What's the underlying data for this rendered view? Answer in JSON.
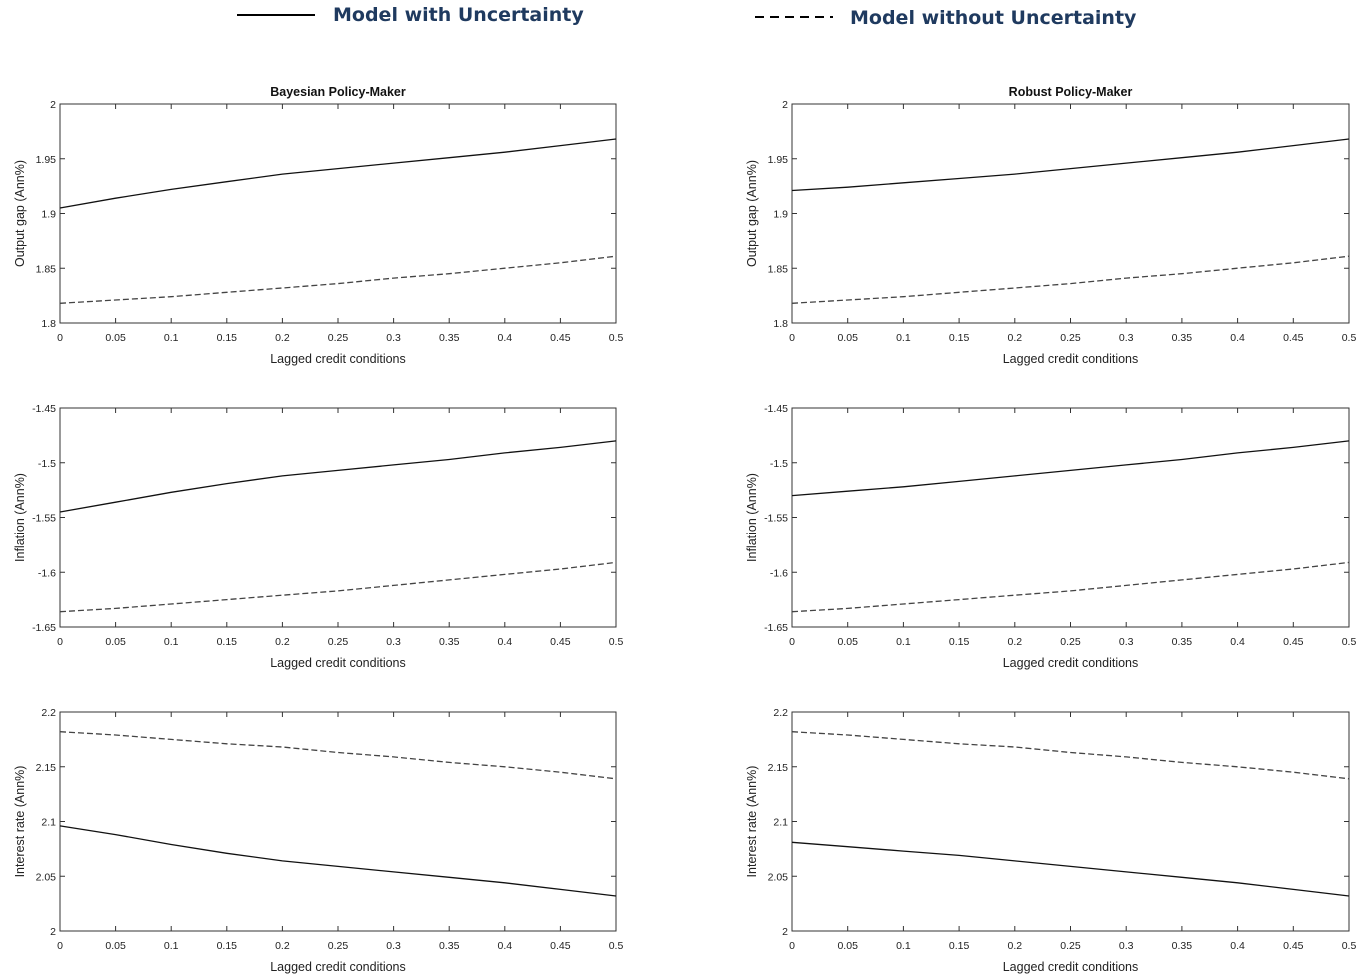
{
  "legend": {
    "items": [
      {
        "label": "Model with Uncertainty",
        "style": "solid"
      },
      {
        "label": "Model without Uncertainty",
        "style": "dashed"
      }
    ],
    "color": "#1f3a5f"
  },
  "chart_data": [
    {
      "type": "line",
      "title": "Bayesian Policy-Maker",
      "xlabel": "Lagged credit conditions",
      "ylabel": "Output gap (Ann%)",
      "xlim": [
        0,
        0.5
      ],
      "ylim": [
        1.8,
        2.0
      ],
      "xticks": [
        "0",
        "0.05",
        "0.1",
        "0.15",
        "0.2",
        "0.25",
        "0.3",
        "0.35",
        "0.4",
        "0.45",
        "0.5"
      ],
      "yticks": [
        "1.8",
        "1.85",
        "1.9",
        "1.95",
        "2"
      ],
      "x": [
        0,
        0.05,
        0.1,
        0.15,
        0.2,
        0.25,
        0.3,
        0.35,
        0.4,
        0.45,
        0.5
      ],
      "series": [
        {
          "style": "solid",
          "values": [
            1.905,
            1.914,
            1.922,
            1.929,
            1.936,
            1.941,
            1.946,
            1.951,
            1.956,
            1.962,
            1.968
          ]
        },
        {
          "style": "dashed",
          "values": [
            1.818,
            1.821,
            1.824,
            1.828,
            1.832,
            1.836,
            1.841,
            1.845,
            1.85,
            1.855,
            1.861
          ]
        }
      ],
      "grid": false
    },
    {
      "type": "line",
      "title": "Robust Policy-Maker",
      "xlabel": "Lagged credit conditions",
      "ylabel": "Output gap (Ann%)",
      "xlim": [
        0,
        0.5
      ],
      "ylim": [
        1.8,
        2.0
      ],
      "xticks": [
        "0",
        "0.05",
        "0.1",
        "0.15",
        "0.2",
        "0.25",
        "0.3",
        "0.35",
        "0.4",
        "0.45",
        "0.5"
      ],
      "yticks": [
        "1.8",
        "1.85",
        "1.9",
        "1.95",
        "2"
      ],
      "x": [
        0,
        0.05,
        0.1,
        0.15,
        0.2,
        0.25,
        0.3,
        0.35,
        0.4,
        0.45,
        0.5
      ],
      "series": [
        {
          "style": "solid",
          "values": [
            1.921,
            1.924,
            1.928,
            1.932,
            1.936,
            1.941,
            1.946,
            1.951,
            1.956,
            1.962,
            1.968
          ]
        },
        {
          "style": "dashed",
          "values": [
            1.818,
            1.821,
            1.824,
            1.828,
            1.832,
            1.836,
            1.841,
            1.845,
            1.85,
            1.855,
            1.861
          ]
        }
      ],
      "grid": false
    },
    {
      "type": "line",
      "title": "",
      "xlabel": "Lagged credit conditions",
      "ylabel": "Inflation (Ann%)",
      "xlim": [
        0,
        0.5
      ],
      "ylim": [
        -1.65,
        -1.45
      ],
      "xticks": [
        "0",
        "0.05",
        "0.1",
        "0.15",
        "0.2",
        "0.25",
        "0.3",
        "0.35",
        "0.4",
        "0.45",
        "0.5"
      ],
      "yticks": [
        "-1.65",
        "-1.6",
        "-1.55",
        "-1.5",
        "-1.45"
      ],
      "x": [
        0,
        0.05,
        0.1,
        0.15,
        0.2,
        0.25,
        0.3,
        0.35,
        0.4,
        0.45,
        0.5
      ],
      "series": [
        {
          "style": "solid",
          "values": [
            -1.545,
            -1.536,
            -1.527,
            -1.519,
            -1.512,
            -1.507,
            -1.502,
            -1.497,
            -1.491,
            -1.486,
            -1.48
          ]
        },
        {
          "style": "dashed",
          "values": [
            -1.636,
            -1.633,
            -1.629,
            -1.625,
            -1.621,
            -1.617,
            -1.612,
            -1.607,
            -1.602,
            -1.597,
            -1.591
          ]
        }
      ],
      "grid": false
    },
    {
      "type": "line",
      "title": "",
      "xlabel": "Lagged credit conditions",
      "ylabel": "Inflation (Ann%)",
      "xlim": [
        0,
        0.5
      ],
      "ylim": [
        -1.65,
        -1.45
      ],
      "xticks": [
        "0",
        "0.05",
        "0.1",
        "0.15",
        "0.2",
        "0.25",
        "0.3",
        "0.35",
        "0.4",
        "0.45",
        "0.5"
      ],
      "yticks": [
        "-1.65",
        "-1.6",
        "-1.55",
        "-1.5",
        "-1.45"
      ],
      "x": [
        0,
        0.05,
        0.1,
        0.15,
        0.2,
        0.25,
        0.3,
        0.35,
        0.4,
        0.45,
        0.5
      ],
      "series": [
        {
          "style": "solid",
          "values": [
            -1.53,
            -1.526,
            -1.522,
            -1.517,
            -1.512,
            -1.507,
            -1.502,
            -1.497,
            -1.491,
            -1.486,
            -1.48
          ]
        },
        {
          "style": "dashed",
          "values": [
            -1.636,
            -1.633,
            -1.629,
            -1.625,
            -1.621,
            -1.617,
            -1.612,
            -1.607,
            -1.602,
            -1.597,
            -1.591
          ]
        }
      ],
      "grid": false
    },
    {
      "type": "line",
      "title": "",
      "xlabel": "Lagged credit conditions",
      "ylabel": "Interest rate (Ann%)",
      "xlim": [
        0,
        0.5
      ],
      "ylim": [
        2.0,
        2.2
      ],
      "xticks": [
        "0",
        "0.05",
        "0.1",
        "0.15",
        "0.2",
        "0.25",
        "0.3",
        "0.35",
        "0.4",
        "0.45",
        "0.5"
      ],
      "yticks": [
        "2",
        "2.05",
        "2.1",
        "2.15",
        "2.2"
      ],
      "x": [
        0,
        0.05,
        0.1,
        0.15,
        0.2,
        0.25,
        0.3,
        0.35,
        0.4,
        0.45,
        0.5
      ],
      "series": [
        {
          "style": "solid",
          "values": [
            2.096,
            2.088,
            2.079,
            2.071,
            2.064,
            2.059,
            2.054,
            2.049,
            2.044,
            2.038,
            2.032
          ]
        },
        {
          "style": "dashed",
          "values": [
            2.182,
            2.179,
            2.175,
            2.171,
            2.168,
            2.163,
            2.159,
            2.154,
            2.15,
            2.145,
            2.139
          ]
        }
      ],
      "grid": false
    },
    {
      "type": "line",
      "title": "",
      "xlabel": "Lagged credit conditions",
      "ylabel": "Interest rate (Ann%)",
      "xlim": [
        0,
        0.5
      ],
      "ylim": [
        2.0,
        2.2
      ],
      "xticks": [
        "0",
        "0.05",
        "0.1",
        "0.15",
        "0.2",
        "0.25",
        "0.3",
        "0.35",
        "0.4",
        "0.45",
        "0.5"
      ],
      "yticks": [
        "2",
        "2.05",
        "2.1",
        "2.15",
        "2.2"
      ],
      "x": [
        0,
        0.05,
        0.1,
        0.15,
        0.2,
        0.25,
        0.3,
        0.35,
        0.4,
        0.45,
        0.5
      ],
      "series": [
        {
          "style": "solid",
          "values": [
            2.081,
            2.077,
            2.073,
            2.069,
            2.064,
            2.059,
            2.054,
            2.049,
            2.044,
            2.038,
            2.032
          ]
        },
        {
          "style": "dashed",
          "values": [
            2.182,
            2.179,
            2.175,
            2.171,
            2.168,
            2.163,
            2.159,
            2.154,
            2.15,
            2.145,
            2.139
          ]
        }
      ],
      "grid": false
    }
  ]
}
